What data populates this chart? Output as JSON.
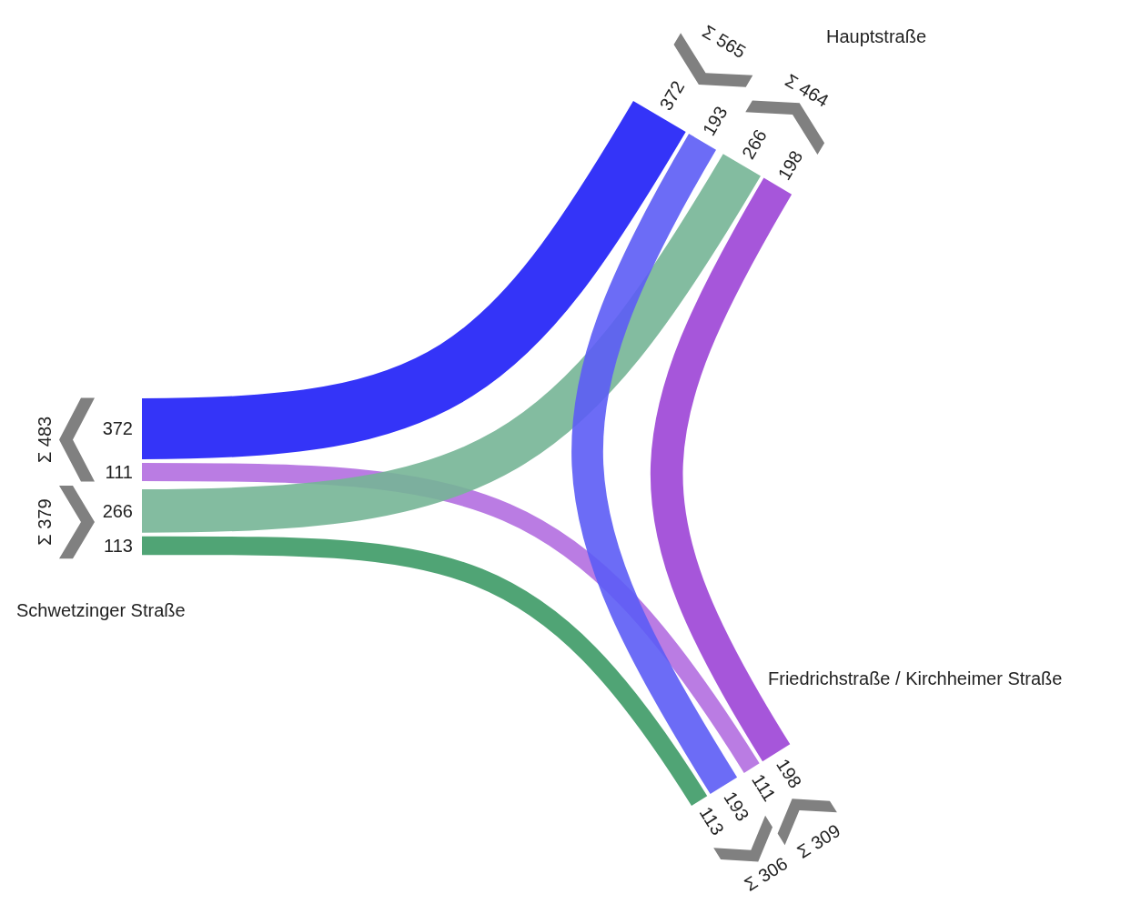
{
  "chart_data": {
    "type": "other",
    "categories": [
      "Schwetzinger Straße",
      "Hauptstraße",
      "Friedrichstraße / Kirchheimer Straße"
    ],
    "series": [
      {
        "color": "#1e1ef7",
        "values": [
          372,
          372,
          null
        ]
      },
      {
        "color": "#b36ee0",
        "values": [
          111,
          null,
          111
        ]
      },
      {
        "color": "#76b596",
        "values": [
          266,
          266,
          null
        ]
      },
      {
        "color": "#3d9a66",
        "values": [
          113,
          null,
          113
        ]
      },
      {
        "color": "#5c5cf5",
        "values": [
          null,
          193,
          193
        ]
      },
      {
        "color": "#9c44d6",
        "values": [
          null,
          198,
          198
        ]
      }
    ],
    "data_labels": true,
    "totals": [
      "Σ 483",
      "Σ 379",
      "Σ 565",
      "Σ 464",
      "Σ 306",
      "Σ 309"
    ]
  }
}
